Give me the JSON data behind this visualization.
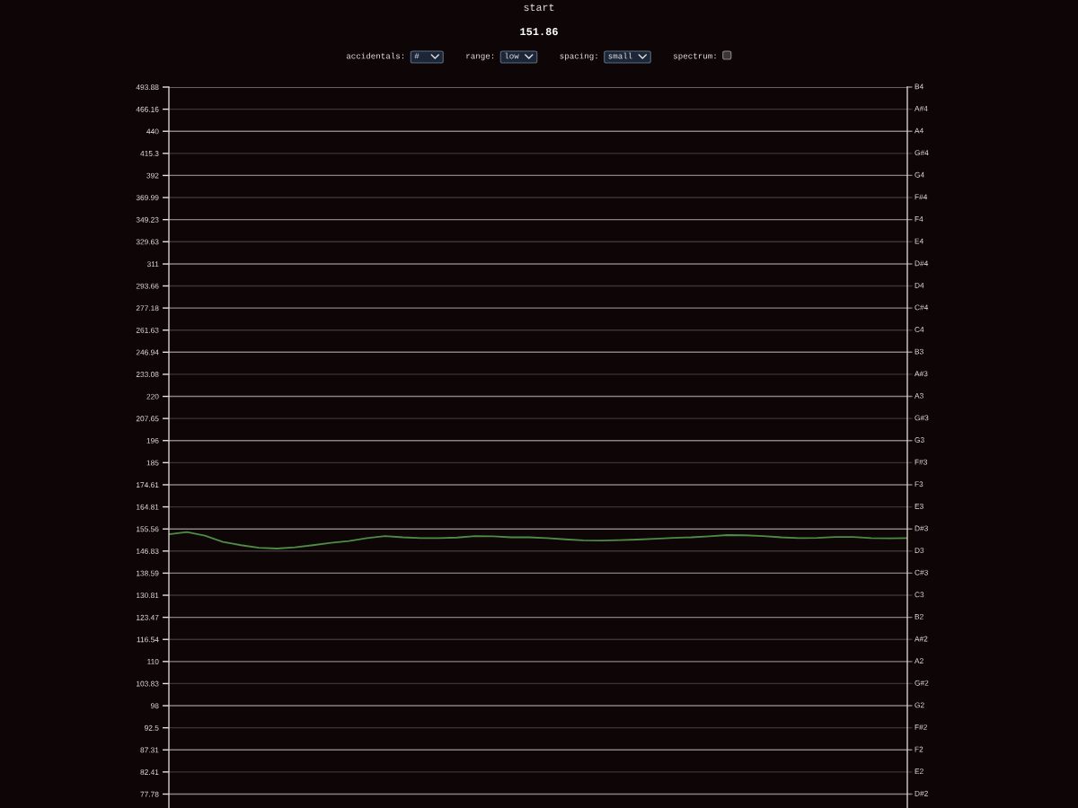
{
  "chart_data": {
    "type": "line",
    "annotations": [
      "start",
      "151.86",
      "accidentals:",
      "#",
      "range:",
      "low",
      "spacing:",
      "small",
      "spectrum:"
    ],
    "categories": [
      null,
      null,
      null,
      null,
      null,
      null,
      null,
      null,
      null,
      null,
      null,
      null,
      null,
      null,
      null,
      null,
      null,
      null,
      null,
      null,
      null,
      null,
      null,
      null,
      null,
      null,
      null,
      null,
      null,
      null,
      null,
      null,
      null,
      null,
      null,
      null,
      null,
      null,
      null,
      null,
      null,
      null
    ],
    "series": [
      {
        "color": "#4e8c46",
        "values": [
          153.4,
          154.3,
          152.9,
          150.4,
          149.1,
          148.1,
          147.8,
          148.3,
          149.1,
          150.0,
          150.7,
          151.9,
          152.7,
          152.2,
          151.9,
          151.9,
          152.1,
          152.7,
          152.6,
          152.2,
          152.2,
          151.9,
          151.4,
          151.0,
          150.9,
          151.1,
          151.3,
          151.6,
          152.0,
          152.2,
          152.6,
          153.1,
          153.0,
          152.7,
          152.2,
          151.9,
          152.0,
          152.3,
          152.3,
          151.9,
          151.8,
          151.9
        ]
      }
    ],
    "ylim": [
      75,
      493.88
    ],
    "yticks": [
      493.88,
      466.16,
      440,
      415.3,
      392,
      369.99,
      349.23,
      329.63,
      311,
      293.66,
      277.18,
      261.63,
      246.94,
      233.08,
      220,
      207.65,
      196,
      185,
      174.61,
      164.81,
      155.56,
      146.83,
      138.59,
      130.81,
      123.47,
      116.54,
      110,
      103.83,
      98,
      92.5,
      87.31,
      82.41,
      77.78
    ],
    "ref_lines": [
      {
        "axis": "y",
        "value": 493.88,
        "label": "B4",
        "color": "#8a8181"
      },
      {
        "axis": "y",
        "value": 466.16,
        "label": "A#4",
        "color": "#3d3434"
      },
      {
        "axis": "y",
        "value": 440,
        "label": "A4",
        "color": "#8a8181"
      },
      {
        "axis": "y",
        "value": 415.3,
        "label": "G#4",
        "color": "#3d3434"
      },
      {
        "axis": "y",
        "value": 392,
        "label": "G4",
        "color": "#8a8181"
      },
      {
        "axis": "y",
        "value": 369.99,
        "label": "F#4",
        "color": "#3d3434"
      },
      {
        "axis": "y",
        "value": 349.23,
        "label": "F4",
        "color": "#8a8181"
      },
      {
        "axis": "y",
        "value": 329.63,
        "label": "E4",
        "color": "#3d3434"
      },
      {
        "axis": "y",
        "value": 311,
        "label": "D#4",
        "color": "#8a8181"
      },
      {
        "axis": "y",
        "value": 293.66,
        "label": "D4",
        "color": "#3d3434"
      },
      {
        "axis": "y",
        "value": 277.18,
        "label": "C#4",
        "color": "#8a8181"
      },
      {
        "axis": "y",
        "value": 261.63,
        "label": "C4",
        "color": "#3d3434"
      },
      {
        "axis": "y",
        "value": 246.94,
        "label": "B3",
        "color": "#8a8181"
      },
      {
        "axis": "y",
        "value": 233.08,
        "label": "A#3",
        "color": "#3d3434"
      },
      {
        "axis": "y",
        "value": 220,
        "label": "A3",
        "color": "#8a8181"
      },
      {
        "axis": "y",
        "value": 207.65,
        "label": "G#3",
        "color": "#3d3434"
      },
      {
        "axis": "y",
        "value": 196,
        "label": "G3",
        "color": "#8a8181"
      },
      {
        "axis": "y",
        "value": 185,
        "label": "F#3",
        "color": "#3d3434"
      },
      {
        "axis": "y",
        "value": 174.61,
        "label": "F3",
        "color": "#8a8181"
      },
      {
        "axis": "y",
        "value": 164.81,
        "label": "E3",
        "color": "#3d3434"
      },
      {
        "axis": "y",
        "value": 155.56,
        "label": "D#3",
        "color": "#8a8181"
      },
      {
        "axis": "y",
        "value": 146.83,
        "label": "D3",
        "color": "#3d3434"
      },
      {
        "axis": "y",
        "value": 138.59,
        "label": "C#3",
        "color": "#8a8181"
      },
      {
        "axis": "y",
        "value": 130.81,
        "label": "C3",
        "color": "#3d3434"
      },
      {
        "axis": "y",
        "value": 123.47,
        "label": "B2",
        "color": "#8a8181"
      },
      {
        "axis": "y",
        "value": 116.54,
        "label": "A#2",
        "color": "#3d3434"
      },
      {
        "axis": "y",
        "value": 110,
        "label": "A2",
        "color": "#8a8181"
      },
      {
        "axis": "y",
        "value": 103.83,
        "label": "G#2",
        "color": "#3d3434"
      },
      {
        "axis": "y",
        "value": 98,
        "label": "G2",
        "color": "#8a8181"
      },
      {
        "axis": "y",
        "value": 92.5,
        "label": "F#2",
        "color": "#3d3434"
      },
      {
        "axis": "y",
        "value": 87.31,
        "label": "F2",
        "color": "#8a8181"
      },
      {
        "axis": "y",
        "value": 82.41,
        "label": "E2",
        "color": "#3d3434"
      },
      {
        "axis": "y",
        "value": 77.78,
        "label": "D#2",
        "color": "#8a8181"
      }
    ],
    "log": "y",
    "tick_labels": "y",
    "marker": "none",
    "line_style": "solid"
  }
}
